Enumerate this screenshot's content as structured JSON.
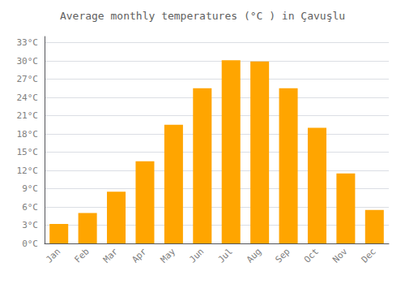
{
  "chart_data": {
    "type": "bar",
    "title": "Average monthly temperatures (°C ) in Çavuşlu",
    "categories": [
      "Jan",
      "Feb",
      "Mar",
      "Apr",
      "May",
      "Jun",
      "Jul",
      "Aug",
      "Sep",
      "Oct",
      "Nov",
      "Dec"
    ],
    "values": [
      3.2,
      5.0,
      8.5,
      13.5,
      19.5,
      25.5,
      30.1,
      29.9,
      25.5,
      19.0,
      11.5,
      5.5
    ],
    "color": "#FFA500",
    "ylim": [
      0,
      34
    ],
    "yticks": [
      {
        "value": 0,
        "label": "0°C"
      },
      {
        "value": 3,
        "label": "3°C"
      },
      {
        "value": 6,
        "label": "6°C"
      },
      {
        "value": 9,
        "label": "9°C"
      },
      {
        "value": 12,
        "label": "12°C"
      },
      {
        "value": 15,
        "label": "15°C"
      },
      {
        "value": 18,
        "label": "18°C"
      },
      {
        "value": 21,
        "label": "21°C"
      },
      {
        "value": 24,
        "label": "24°C"
      },
      {
        "value": 27,
        "label": "27°C"
      },
      {
        "value": 30,
        "label": "30°C"
      },
      {
        "value": 33,
        "label": "33°C"
      }
    ],
    "grid": true
  }
}
